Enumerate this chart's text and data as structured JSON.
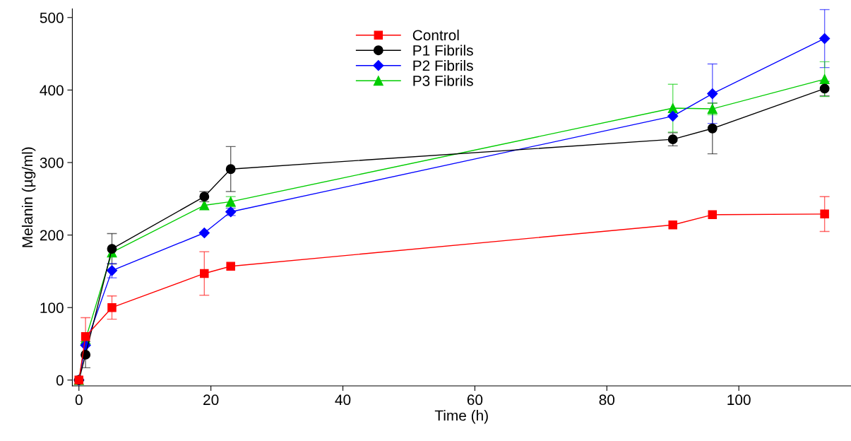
{
  "chart_data": {
    "type": "line",
    "xlabel": "Time (h)",
    "ylabel": "Melanin (µg/ml)",
    "x": [
      0,
      1,
      5,
      19,
      23,
      90,
      96,
      113
    ],
    "xlim": [
      -1,
      117
    ],
    "xticks": [
      0,
      20,
      40,
      60,
      80,
      100
    ],
    "ylim": [
      -8,
      512
    ],
    "yticks": [
      0,
      100,
      200,
      300,
      400,
      500
    ],
    "grid": false,
    "legend": "top",
    "line_style": "solid",
    "series": [
      {
        "name": "Control",
        "color": "#ff0000",
        "marker": "square",
        "values": [
          0,
          60,
          100,
          147,
          157,
          214,
          228,
          229
        ],
        "errors": [
          null,
          26,
          16,
          30,
          null,
          null,
          null,
          24
        ]
      },
      {
        "name": "P1 Fibrils",
        "color": "#000000",
        "marker": "circle",
        "values": [
          0,
          35,
          181,
          253,
          291,
          332,
          347,
          402
        ],
        "errors": [
          null,
          18,
          21,
          7,
          31,
          9,
          35,
          10
        ]
      },
      {
        "name": "P2 Fibrils",
        "color": "#0000ff",
        "marker": "diamond",
        "values": [
          0,
          48,
          151,
          203,
          232,
          364,
          395,
          471
        ],
        "errors": [
          null,
          null,
          10,
          null,
          5,
          null,
          41,
          40
        ]
      },
      {
        "name": "P3 Fibrils",
        "color": "#00cc00",
        "marker": "triangle",
        "values": [
          0,
          56,
          176,
          241,
          246,
          375,
          374,
          415
        ],
        "errors": [
          null,
          null,
          null,
          null,
          7,
          33,
          8,
          24
        ]
      }
    ]
  }
}
